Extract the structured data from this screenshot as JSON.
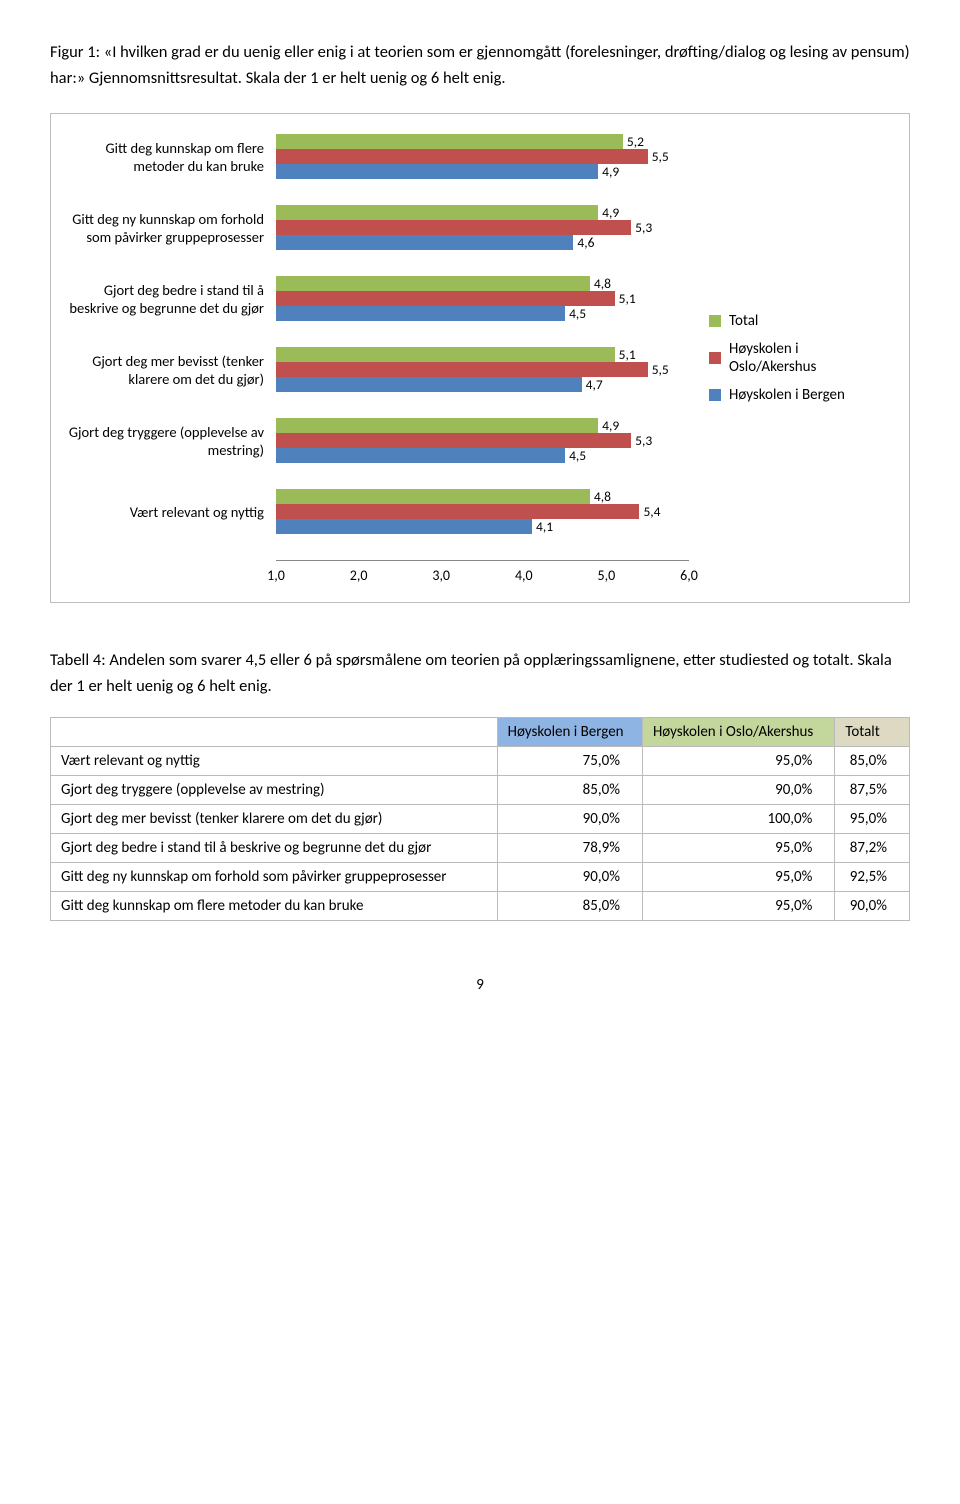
{
  "figure": {
    "caption": "Figur 1: «I hvilken grad er du uenig eller enig i at teorien som er gjennomgått (forelesninger, drøfting/dialog og lesing av pensum) har:» Gjennomsnittsresultat. Skala der 1 er helt uenig og 6 helt enig.",
    "xlim": [
      1.0,
      6.0
    ],
    "xtick_step": 1.0,
    "xticks": [
      "1,0",
      "2,0",
      "3,0",
      "4,0",
      "5,0",
      "6,0"
    ],
    "series_colors": {
      "total": "#9bbb59",
      "oslo": "#c0504d",
      "bergen": "#4f81bd"
    },
    "legend": [
      {
        "key": "total",
        "label": "Total"
      },
      {
        "key": "oslo",
        "label": "Høyskolen i Oslo/Akershus"
      },
      {
        "key": "bergen",
        "label": "Høyskolen i Bergen"
      }
    ],
    "categories": [
      {
        "label": "Gitt deg kunnskap om flere metoder du kan bruke",
        "bars": [
          {
            "series": "total",
            "v": 5.2,
            "t": "5,2"
          },
          {
            "series": "oslo",
            "v": 5.5,
            "t": "5,5"
          },
          {
            "series": "bergen",
            "v": 4.9,
            "t": "4,9"
          }
        ]
      },
      {
        "label": "Gitt deg ny kunnskap om forhold som påvirker gruppeprosesser",
        "bars": [
          {
            "series": "total",
            "v": 4.9,
            "t": "4,9"
          },
          {
            "series": "oslo",
            "v": 5.3,
            "t": "5,3"
          },
          {
            "series": "bergen",
            "v": 4.6,
            "t": "4,6"
          }
        ]
      },
      {
        "label": "Gjort deg bedre i stand til å beskrive og begrunne det du gjør",
        "bars": [
          {
            "series": "total",
            "v": 4.8,
            "t": "4,8"
          },
          {
            "series": "oslo",
            "v": 5.1,
            "t": "5,1"
          },
          {
            "series": "bergen",
            "v": 4.5,
            "t": "4,5"
          }
        ]
      },
      {
        "label": "Gjort deg mer bevisst (tenker klarere om det du gjør)",
        "bars": [
          {
            "series": "total",
            "v": 5.1,
            "t": "5,1"
          },
          {
            "series": "oslo",
            "v": 5.5,
            "t": "5,5"
          },
          {
            "series": "bergen",
            "v": 4.7,
            "t": "4,7"
          }
        ]
      },
      {
        "label": "Gjort deg tryggere (opplevelse av mestring)",
        "bars": [
          {
            "series": "total",
            "v": 4.9,
            "t": "4,9"
          },
          {
            "series": "oslo",
            "v": 5.3,
            "t": "5,3"
          },
          {
            "series": "bergen",
            "v": 4.5,
            "t": "4,5"
          }
        ]
      },
      {
        "label": "Vært relevant og nyttig",
        "bars": [
          {
            "series": "total",
            "v": 4.8,
            "t": "4,8"
          },
          {
            "series": "oslo",
            "v": 5.4,
            "t": "5,4"
          },
          {
            "series": "bergen",
            "v": 4.1,
            "t": "4,1"
          }
        ]
      }
    ]
  },
  "table": {
    "caption": "Tabell 4: Andelen som svarer 4,5 eller 6 på spørsmålene om teorien på opplæringssamlignene, etter studiested og totalt. Skala der 1 er helt uenig og 6 helt enig.",
    "columns": [
      {
        "label": "",
        "bg": "#ffffff"
      },
      {
        "label": "Høyskolen i Bergen",
        "bg": "#8eb4e3"
      },
      {
        "label": "Høyskolen i Oslo/Akershus",
        "bg": "#c3d69b"
      },
      {
        "label": "Totalt",
        "bg": "#ddd9c3"
      }
    ],
    "rows": [
      {
        "label": "Vært relevant og nyttig",
        "cells": [
          "75,0%",
          "95,0%",
          "85,0%"
        ]
      },
      {
        "label": "Gjort deg tryggere (opplevelse av mestring)",
        "cells": [
          "85,0%",
          "90,0%",
          "87,5%"
        ]
      },
      {
        "label": "Gjort deg mer bevisst (tenker klarere om det du gjør)",
        "cells": [
          "90,0%",
          "100,0%",
          "95,0%"
        ]
      },
      {
        "label": "Gjort deg bedre i stand til å beskrive og begrunne det du gjør",
        "cells": [
          "78,9%",
          "95,0%",
          "87,2%"
        ]
      },
      {
        "label": "Gitt deg ny kunnskap om forhold som påvirker gruppeprosesser",
        "cells": [
          "90,0%",
          "95,0%",
          "92,5%"
        ]
      },
      {
        "label": "Gitt deg kunnskap om flere metoder du kan bruke",
        "cells": [
          "85,0%",
          "95,0%",
          "90,0%"
        ]
      }
    ]
  },
  "page_number": "9"
}
